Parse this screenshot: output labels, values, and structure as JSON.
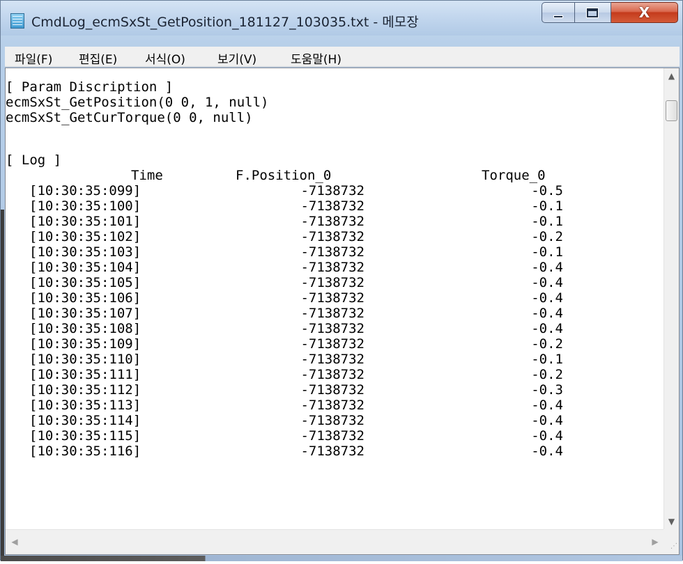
{
  "window": {
    "title": "CmdLog_ecmSxSt_GetPosition_181127_103035.txt - 메모장",
    "close_label": "X"
  },
  "menu": [
    {
      "label": "파일(F)"
    },
    {
      "label": "편집(E)"
    },
    {
      "label": "서식(O)"
    },
    {
      "label": "보기(V)"
    },
    {
      "label": "도움말(H)"
    }
  ],
  "document": {
    "param_header": "[ Param Discription ]",
    "param_lines": [
      "ecmSxSt_GetPosition(0 0, 1, null)",
      "ecmSxSt_GetCurTorque(0 0, null)"
    ],
    "log_header": "[ Log ]",
    "columns": {
      "time": "Time",
      "position": "F.Position_0",
      "torque": "Torque_0"
    },
    "rows": [
      {
        "time": "[10:30:35:099]",
        "position": "-7138732",
        "torque": "-0.5"
      },
      {
        "time": "[10:30:35:100]",
        "position": "-7138732",
        "torque": "-0.1"
      },
      {
        "time": "[10:30:35:101]",
        "position": "-7138732",
        "torque": "-0.1"
      },
      {
        "time": "[10:30:35:102]",
        "position": "-7138732",
        "torque": "-0.2"
      },
      {
        "time": "[10:30:35:103]",
        "position": "-7138732",
        "torque": "-0.1"
      },
      {
        "time": "[10:30:35:104]",
        "position": "-7138732",
        "torque": "-0.4"
      },
      {
        "time": "[10:30:35:105]",
        "position": "-7138732",
        "torque": "-0.4"
      },
      {
        "time": "[10:30:35:106]",
        "position": "-7138732",
        "torque": "-0.4"
      },
      {
        "time": "[10:30:35:107]",
        "position": "-7138732",
        "torque": "-0.4"
      },
      {
        "time": "[10:30:35:108]",
        "position": "-7138732",
        "torque": "-0.4"
      },
      {
        "time": "[10:30:35:109]",
        "position": "-7138732",
        "torque": "-0.2"
      },
      {
        "time": "[10:30:35:110]",
        "position": "-7138732",
        "torque": "-0.1"
      },
      {
        "time": "[10:30:35:111]",
        "position": "-7138732",
        "torque": "-0.2"
      },
      {
        "time": "[10:30:35:112]",
        "position": "-7138732",
        "torque": "-0.3"
      },
      {
        "time": "[10:30:35:113]",
        "position": "-7138732",
        "torque": "-0.4"
      },
      {
        "time": "[10:30:35:114]",
        "position": "-7138732",
        "torque": "-0.4"
      },
      {
        "time": "[10:30:35:115]",
        "position": "-7138732",
        "torque": "-0.4"
      },
      {
        "time": "[10:30:35:116]",
        "position": "-7138732",
        "torque": "-0.4"
      }
    ]
  },
  "icons": {
    "app": "notepad-icon",
    "minimize": "minimize-icon",
    "maximize": "maximize-icon",
    "close": "close-icon",
    "scroll_up": "arrow-up-icon",
    "scroll_down": "arrow-down-icon",
    "scroll_left": "arrow-left-icon",
    "scroll_right": "arrow-right-icon"
  }
}
